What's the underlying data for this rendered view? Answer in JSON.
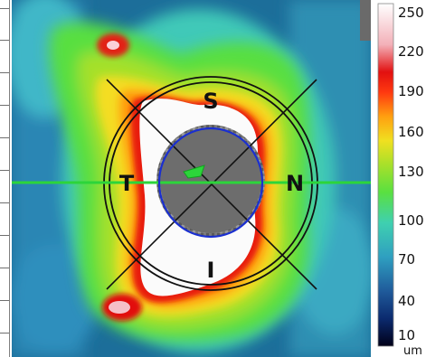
{
  "map": {
    "sector_labels": {
      "superior": "S",
      "nasal": "N",
      "inferior": "I",
      "temporal": "T"
    },
    "colors": {
      "horizontal_line": "#2cd53a",
      "disc_outline": "#1a2fd0",
      "rings": "#111111",
      "cup_fill": "#6b6b6b"
    }
  },
  "colorbar": {
    "ticks": [
      "250",
      "220",
      "190",
      "160",
      "130",
      "100",
      "70",
      "40",
      "10"
    ],
    "unit": "um",
    "min": 10,
    "max": 250,
    "stops": [
      "#000018",
      "#0b2a6e",
      "#1f5a9a",
      "#2f9fc0",
      "#3fd0b0",
      "#5ae040",
      "#a8e02a",
      "#f0e020",
      "#ffa010",
      "#ff3a10",
      "#e21010",
      "#f3b0b8",
      "#ffffff"
    ]
  }
}
